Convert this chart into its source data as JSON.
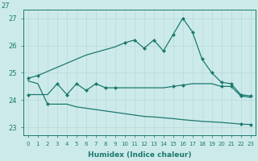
{
  "xlabel": "Humidex (Indice chaleur)",
  "x": [
    0,
    1,
    2,
    3,
    4,
    5,
    6,
    7,
    8,
    9,
    10,
    11,
    12,
    13,
    14,
    15,
    16,
    17,
    18,
    19,
    20,
    21,
    22,
    23
  ],
  "max_y": [
    24.8,
    24.9,
    25.05,
    25.2,
    25.35,
    25.5,
    25.65,
    25.75,
    25.85,
    25.95,
    26.1,
    26.2,
    25.9,
    26.2,
    25.8,
    26.4,
    27.0,
    26.5,
    25.5,
    25.0,
    24.65,
    24.6,
    24.2,
    24.15
  ],
  "mean_y": [
    24.2,
    24.2,
    24.2,
    24.6,
    24.2,
    24.6,
    24.35,
    24.6,
    24.45,
    24.45,
    24.45,
    24.45,
    24.45,
    24.45,
    24.45,
    24.5,
    24.55,
    24.6,
    24.6,
    24.6,
    24.5,
    24.5,
    24.15,
    24.1
  ],
  "min_y": [
    24.7,
    24.6,
    23.85,
    23.85,
    23.85,
    23.75,
    23.7,
    23.65,
    23.6,
    23.55,
    23.5,
    23.45,
    23.4,
    23.38,
    23.35,
    23.32,
    23.28,
    23.25,
    23.22,
    23.2,
    23.18,
    23.15,
    23.12,
    23.1
  ],
  "max_has_marker": [
    true,
    true,
    false,
    false,
    false,
    false,
    false,
    false,
    false,
    false,
    true,
    true,
    true,
    true,
    true,
    true,
    true,
    true,
    true,
    true,
    true,
    true,
    true,
    true
  ],
  "mean_has_marker": [
    true,
    false,
    false,
    true,
    true,
    true,
    true,
    true,
    true,
    true,
    false,
    false,
    false,
    false,
    false,
    true,
    true,
    false,
    false,
    false,
    true,
    true,
    true,
    false
  ],
  "min_has_marker": [
    false,
    false,
    true,
    false,
    false,
    false,
    false,
    false,
    false,
    false,
    false,
    false,
    false,
    false,
    false,
    false,
    false,
    false,
    false,
    false,
    false,
    false,
    true,
    true
  ],
  "ylim": [
    22.7,
    27.3
  ],
  "yticks": [
    23,
    24,
    25,
    26,
    27
  ],
  "color": "#1a7a6e",
  "bg_color": "#cdeaea",
  "grid_color": "#b8d8d8"
}
